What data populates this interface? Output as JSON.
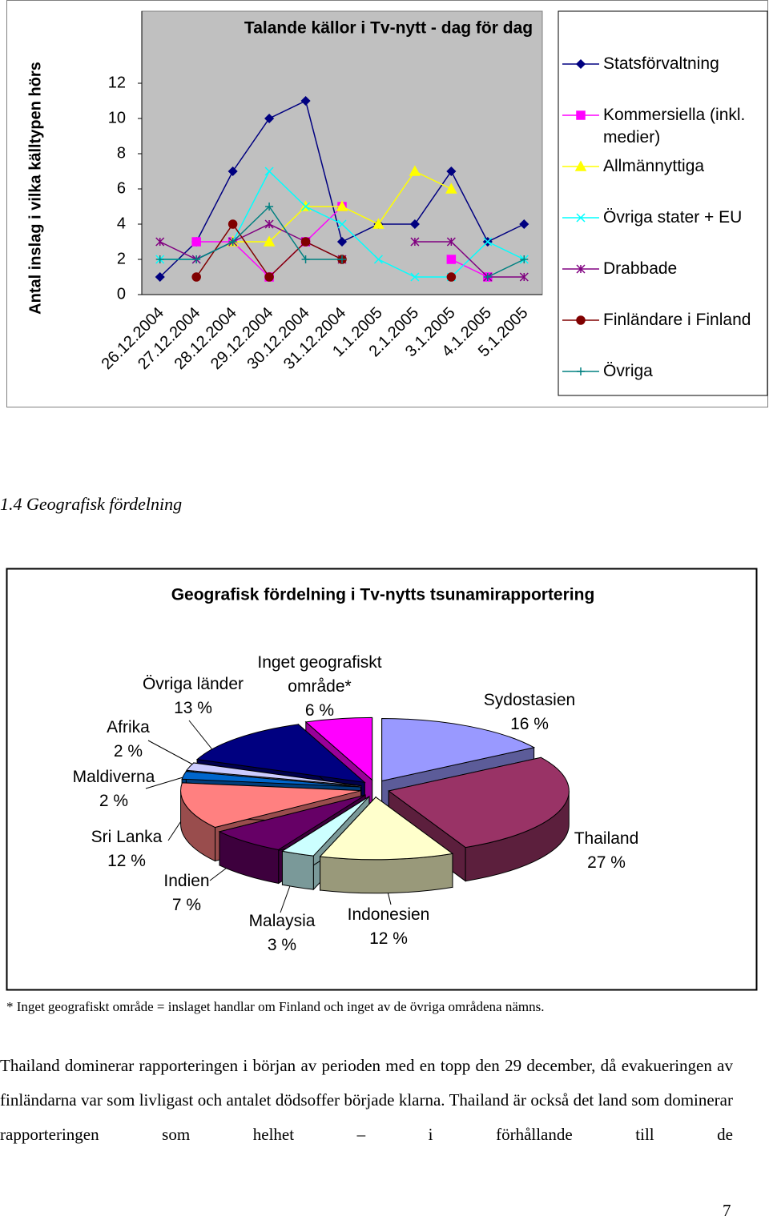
{
  "chart_data": [
    {
      "type": "line",
      "title": "Talande källor i Tv-nytt - dag för dag",
      "y_label": "Antal inslag i vilka källtypen hörs",
      "categories": [
        "26.12.2004",
        "27.12.2004",
        "28.12.2004",
        "29.12.2004",
        "30.12.2004",
        "31.12.2004",
        "1.1.2005",
        "2.1.2005",
        "3.1.2005",
        "4.1.2005",
        "5.1.2005"
      ],
      "series": [
        {
          "name": "Statsförvaltning",
          "color": "#000080",
          "marker": "diamond",
          "values": [
            1,
            3,
            7,
            10,
            11,
            3,
            4,
            4,
            7,
            3,
            4
          ]
        },
        {
          "name": "Kommersiella (inkl. medier)",
          "color": "#ff00ff",
          "marker": "square",
          "values": [
            null,
            3,
            3,
            1,
            3,
            5,
            null,
            null,
            2,
            1,
            null
          ]
        },
        {
          "name": "Allmännyttiga",
          "color": "#ffff00",
          "marker": "triangle",
          "values": [
            null,
            null,
            3,
            3,
            5,
            5,
            4,
            7,
            6,
            null,
            null
          ]
        },
        {
          "name": "Övriga stater + EU",
          "color": "#00ffff",
          "marker": "x",
          "values": [
            2,
            2,
            3,
            7,
            5,
            4,
            2,
            1,
            1,
            3,
            2
          ]
        },
        {
          "name": "Drabbade",
          "color": "#800080",
          "marker": "asterisk",
          "values": [
            3,
            2,
            3,
            4,
            3,
            2,
            null,
            3,
            3,
            1,
            1
          ]
        },
        {
          "name": "Finländare i Finland",
          "color": "#800000",
          "marker": "circle",
          "values": [
            null,
            1,
            4,
            1,
            3,
            2,
            null,
            null,
            1,
            null,
            null
          ]
        },
        {
          "name": "Övriga",
          "color": "#008080",
          "marker": "plus",
          "values": [
            2,
            2,
            3,
            5,
            2,
            2,
            null,
            null,
            null,
            1,
            2
          ]
        }
      ],
      "ylim": [
        0,
        12
      ],
      "yticks": [
        0,
        2,
        4,
        6,
        8,
        10,
        12
      ],
      "grid": false,
      "legend": "right"
    },
    {
      "type": "pie",
      "title": "Geografisk fördelning i Tv-nytts tsunamirapportering",
      "categories": [
        "Sydostasien",
        "Thailand",
        "Indonesien",
        "Malaysia",
        "Indien",
        "Sri Lanka",
        "Maldiverna",
        "Afrika",
        "Övriga länder",
        "Inget geografiskt område*"
      ],
      "values": [
        16,
        27,
        12,
        3,
        7,
        12,
        2,
        2,
        13,
        6
      ],
      "value_labels": [
        "16 %",
        "27 %",
        "12 %",
        "3 %",
        "7 %",
        "12 %",
        "2 %",
        "2 %",
        "13 %",
        "6 %"
      ],
      "colors": [
        "#9999ff",
        "#993366",
        "#ffffcc",
        "#ccffff",
        "#660066",
        "#ff8080",
        "#0066cc",
        "#ccccff",
        "#000080",
        "#ff00ff"
      ]
    }
  ],
  "section_heading": "1.4 Geografisk fördelning",
  "footnote": "* Inget geografiskt område = inslaget handlar om Finland och inget av de övriga områdena nämns.",
  "paragraph": "Thailand dominerar rapporteringen i början av perioden med en topp den 29 december, då evakueringen av finländarna var som livligast och antalet dödsoffer började klarna. Thailand är också det land som dominerar rapporteringen som helhet – i förhållande till de",
  "page_number": "7"
}
